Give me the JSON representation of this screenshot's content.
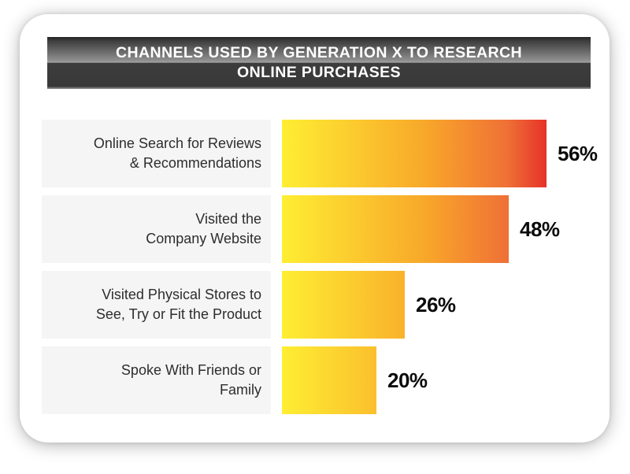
{
  "header": {
    "title_line1": "CHANNELS USED BY GENERATION X TO RESEARCH",
    "title_line2": "ONLINE PURCHASES"
  },
  "chart_data": {
    "type": "bar",
    "orientation": "horizontal",
    "title": "CHANNELS USED BY GENERATION X TO RESEARCH ONLINE PURCHASES",
    "categories": [
      "Online Search for Reviews & Recommendations",
      "Visited the Company Website",
      "Visited Physical Stores to See, Try or Fit the Product",
      "Spoke With Friends or Family"
    ],
    "values": [
      56,
      48,
      26,
      20
    ],
    "value_labels": [
      "56%",
      "48%",
      "26%",
      "20%"
    ],
    "xlim": [
      0,
      56
    ],
    "grid": false,
    "legend": false,
    "bar_gradient": [
      "#ffee33",
      "#f8a62a",
      "#ef7136",
      "#e63229"
    ]
  },
  "rows": [
    {
      "label": "Online Search for Reviews\n& Recommendations",
      "value_label": "56%"
    },
    {
      "label": "Visited the\nCompany Website",
      "value_label": "48%"
    },
    {
      "label": "Visited Physical Stores to\nSee, Try or Fit the Product",
      "value_label": "26%"
    },
    {
      "label": "Spoke With Friends or\nFamily",
      "value_label": "20%"
    }
  ],
  "colors": {
    "card_background": "#ffffff",
    "banner_dark": "#3d3d3d",
    "banner_highlight": "#a3a3a3",
    "label_box_background": "#f5f5f5",
    "label_text": "#2d2d2d",
    "value_text": "#0b0b0b"
  }
}
